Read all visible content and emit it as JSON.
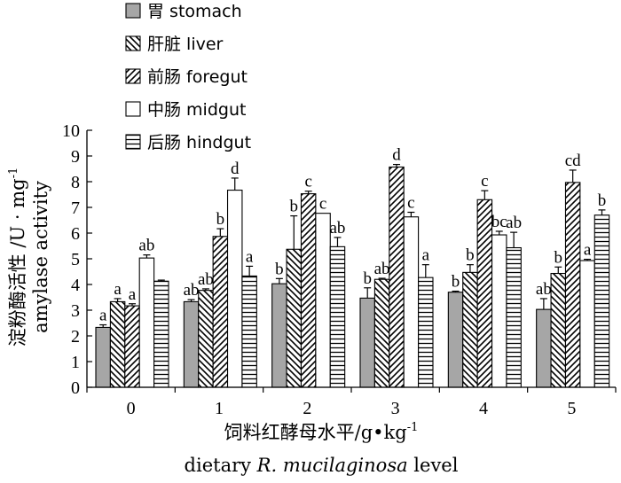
{
  "chart_data": {
    "type": "bar",
    "categories": [
      "0",
      "1",
      "2",
      "3",
      "4",
      "5"
    ],
    "ylim": [
      0,
      10
    ],
    "yticks": [
      "0",
      "1",
      "2",
      "3",
      "4",
      "5",
      "6",
      "7",
      "8",
      "9",
      "10"
    ],
    "ylabel_cn": "淀粉酶活性 /U · mg",
    "ylabel_cn_sup": "-1",
    "ylabel_en": "amylase activity",
    "xlabel_cn": "饲料红酵母水平/g•kg",
    "xlabel_cn_sup": "-1",
    "xlabel_en_pre": "dietary ",
    "xlabel_en_italic": "R. mucilaginosa",
    "xlabel_en_post": " level",
    "legend_position": "top-left",
    "series": [
      {
        "name": "胃 stomach",
        "pattern": "solid-gray",
        "values": [
          2.33,
          3.33,
          4.03,
          3.47,
          3.7,
          3.03
        ],
        "errors": [
          0.1,
          0.08,
          0.2,
          0.4,
          0.04,
          0.42
        ],
        "labels": [
          "a",
          "ab",
          "b",
          "b",
          "b",
          "ab"
        ]
      },
      {
        "name": "肝脏 liver",
        "pattern": "backslash",
        "values": [
          3.33,
          3.77,
          5.37,
          4.2,
          4.47,
          4.43
        ],
        "errors": [
          0.12,
          0.06,
          1.3,
          0.04,
          0.3,
          0.25
        ],
        "labels": [
          "a",
          "ab",
          "b",
          "ab",
          "b",
          "b"
        ]
      },
      {
        "name": "前肠 foregut",
        "pattern": "slash",
        "values": [
          3.17,
          5.87,
          7.53,
          8.57,
          7.3,
          7.97
        ],
        "errors": [
          0.08,
          0.3,
          0.1,
          0.1,
          0.35,
          0.48
        ],
        "labels": [
          "a",
          "b",
          "c",
          "d",
          "c",
          "cd"
        ]
      },
      {
        "name": "中肠 midgut",
        "pattern": "open",
        "values": [
          5.03,
          7.67,
          6.77,
          6.63,
          5.93,
          4.93
        ],
        "errors": [
          0.12,
          0.47,
          0.0,
          0.18,
          0.14,
          0.05
        ],
        "labels": [
          "ab",
          "d",
          "c",
          "c",
          "bc",
          "a"
        ]
      },
      {
        "name": "后肠 hindgut",
        "pattern": "horizontal",
        "values": [
          4.13,
          4.33,
          5.47,
          4.27,
          5.43,
          6.7
        ],
        "errors": [
          0.04,
          0.38,
          0.36,
          0.5,
          0.6,
          0.2
        ],
        "labels": [
          "",
          "a",
          "ab",
          "a",
          "ab",
          "b"
        ]
      }
    ]
  }
}
